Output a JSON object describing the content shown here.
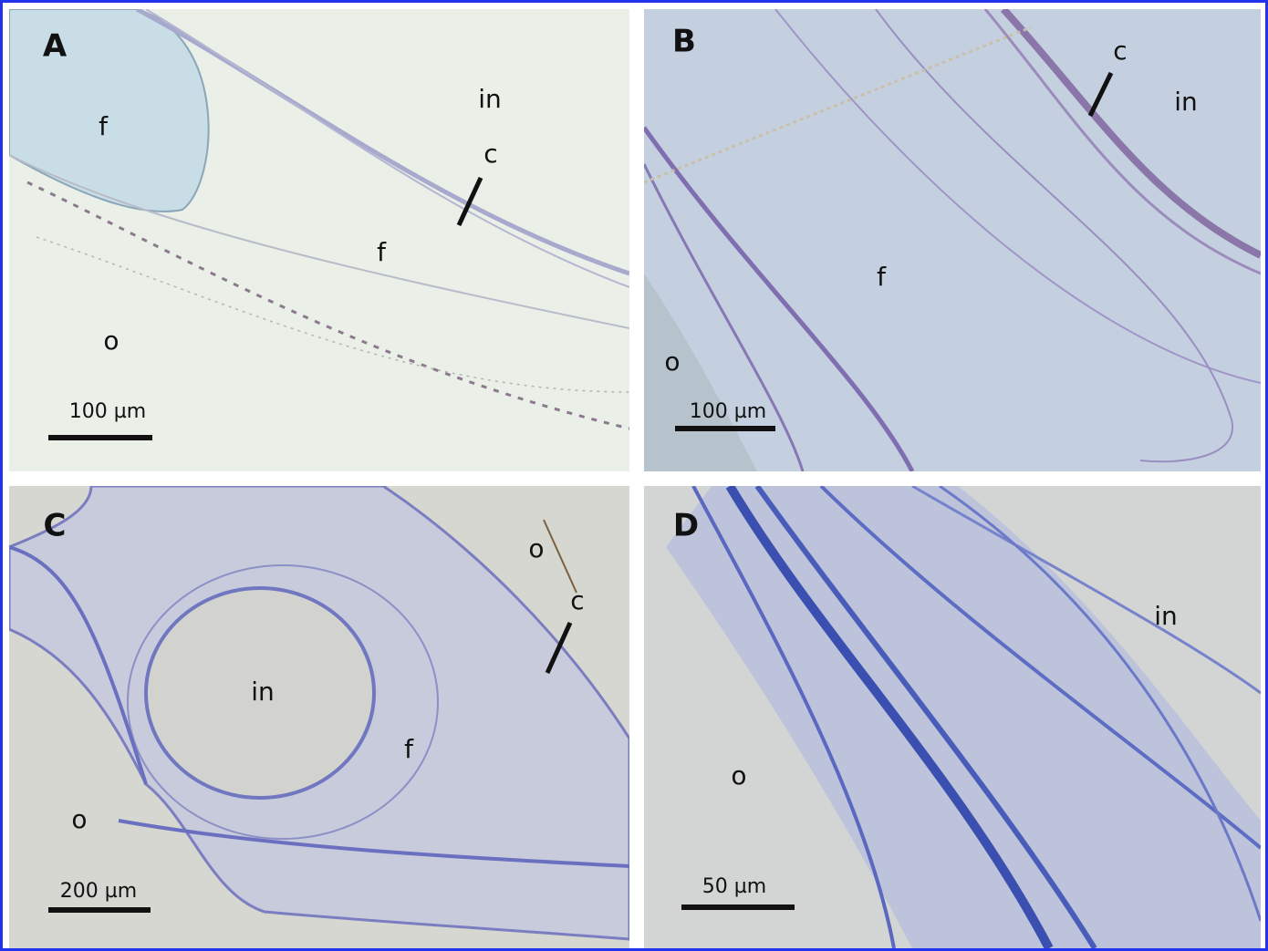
{
  "panels": [
    {
      "letter": "A",
      "labels": [
        "f",
        "in",
        "c",
        "f",
        "o"
      ],
      "scale_bar": "100 µm"
    },
    {
      "letter": "B",
      "labels": [
        "c",
        "in",
        "f",
        "o"
      ],
      "scale_bar": "100 µm"
    },
    {
      "letter": "C",
      "labels": [
        "o",
        "c",
        "in",
        "f",
        "o"
      ],
      "scale_bar": "200 µm"
    },
    {
      "letter": "D",
      "labels": [
        "in",
        "o"
      ],
      "scale_bar": "50 µm"
    }
  ]
}
